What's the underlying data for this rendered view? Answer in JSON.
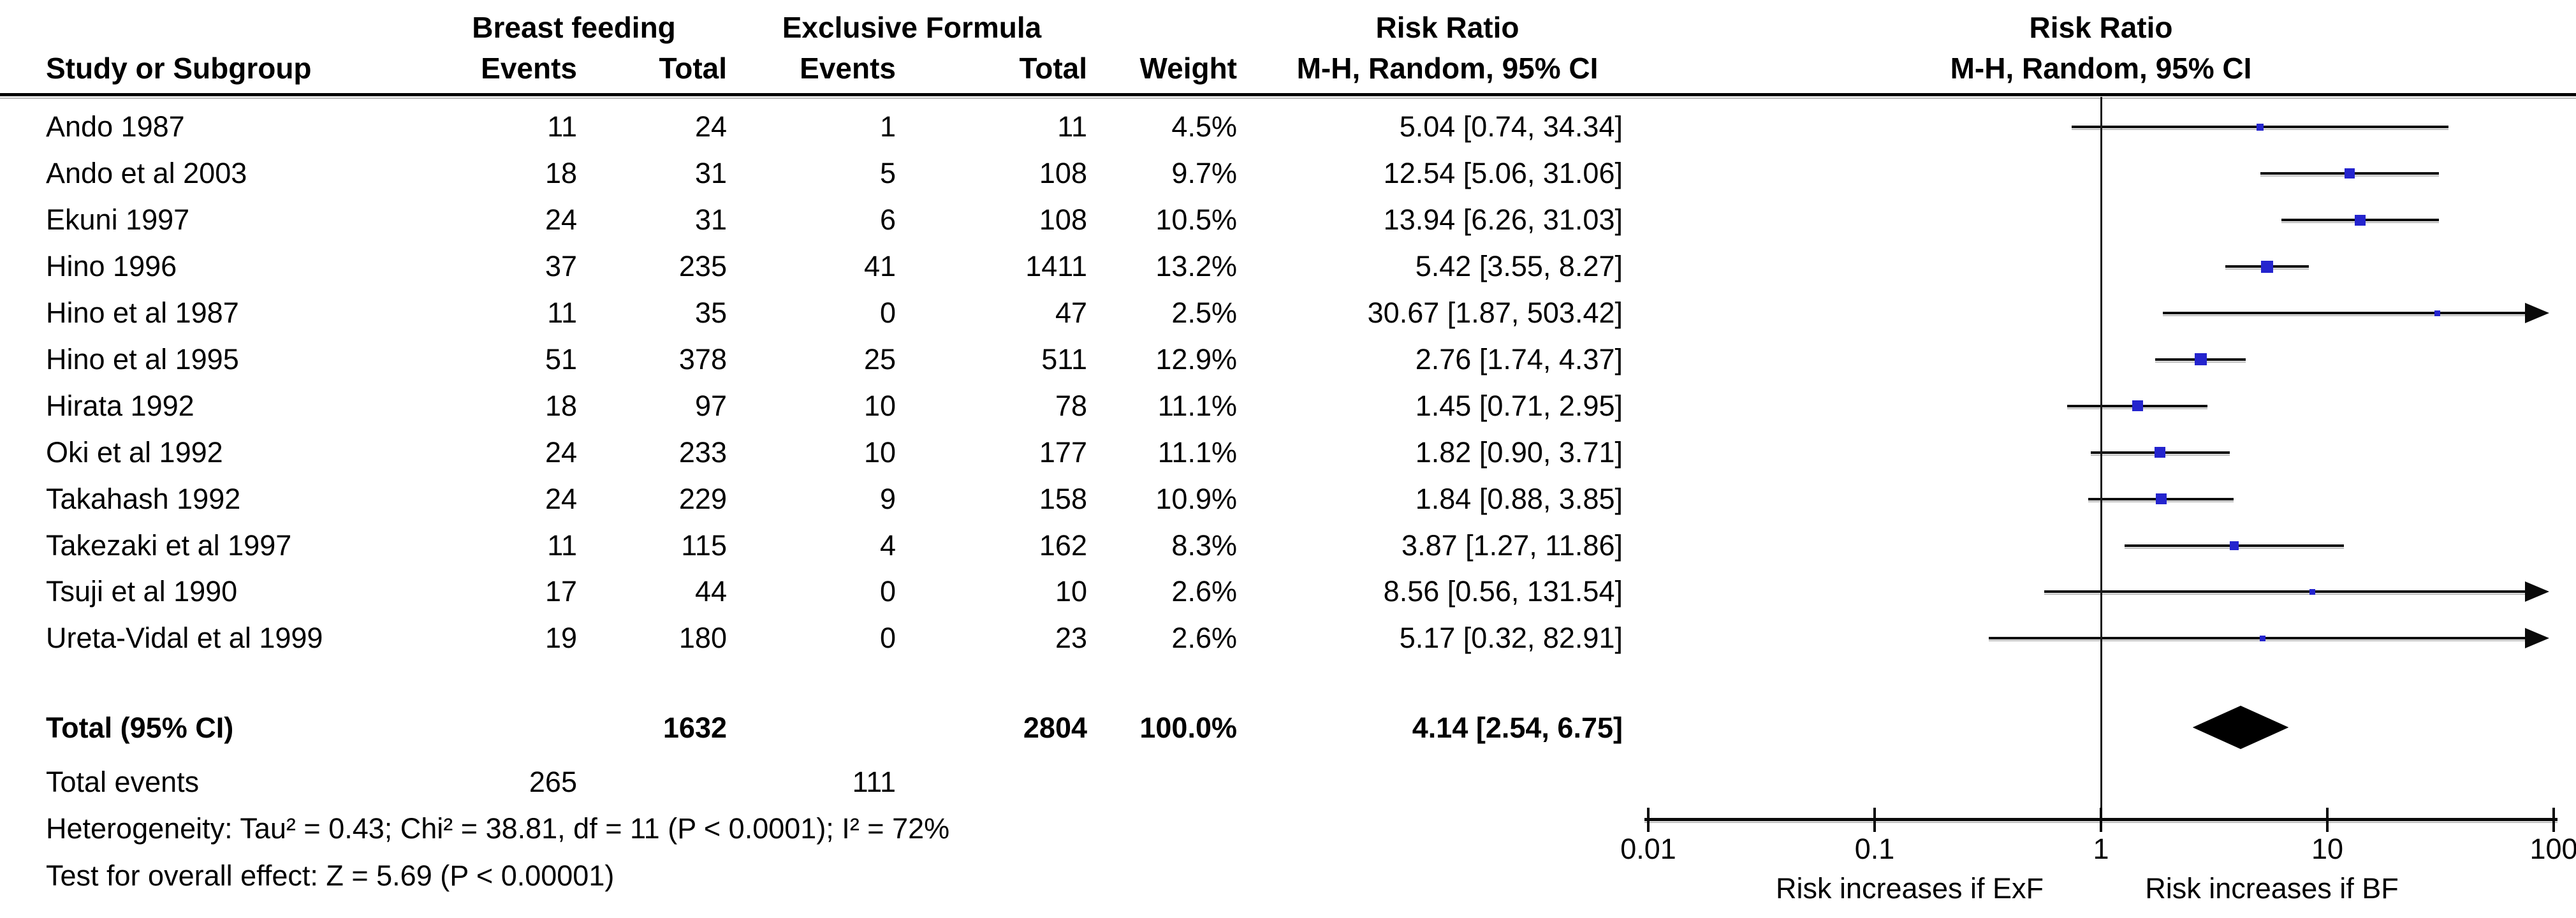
{
  "header": {
    "col_study": "Study or Subgroup",
    "group1": "Breast feeding",
    "group2": "Exclusive Formula",
    "col_events": "Events",
    "col_total": "Total",
    "col_weight": "Weight",
    "risk_ratio_title": "Risk Ratio",
    "method_subtitle": "M-H, Random, 95% CI"
  },
  "chart_data": {
    "type": "forest",
    "effect_measure": "Risk Ratio",
    "model": "M-H, Random, 95% CI",
    "studies": [
      {
        "study": "Ando 1987",
        "bf_events": 11,
        "bf_total": 24,
        "exf_events": 1,
        "exf_total": 11,
        "weight": "4.5%",
        "weight_pct": 4.5,
        "rr_text": "5.04 [0.74, 34.34]",
        "rr": 5.04,
        "ci_low": 0.74,
        "ci_high": 34.34
      },
      {
        "study": "Ando et al 2003",
        "bf_events": 18,
        "bf_total": 31,
        "exf_events": 5,
        "exf_total": 108,
        "weight": "9.7%",
        "weight_pct": 9.7,
        "rr_text": "12.54 [5.06, 31.06]",
        "rr": 12.54,
        "ci_low": 5.06,
        "ci_high": 31.06
      },
      {
        "study": "Ekuni 1997",
        "bf_events": 24,
        "bf_total": 31,
        "exf_events": 6,
        "exf_total": 108,
        "weight": "10.5%",
        "weight_pct": 10.5,
        "rr_text": "13.94 [6.26, 31.03]",
        "rr": 13.94,
        "ci_low": 6.26,
        "ci_high": 31.03
      },
      {
        "study": "Hino 1996",
        "bf_events": 37,
        "bf_total": 235,
        "exf_events": 41,
        "exf_total": 1411,
        "weight": "13.2%",
        "weight_pct": 13.2,
        "rr_text": "5.42 [3.55, 8.27]",
        "rr": 5.42,
        "ci_low": 3.55,
        "ci_high": 8.27
      },
      {
        "study": "Hino et al 1987",
        "bf_events": 11,
        "bf_total": 35,
        "exf_events": 0,
        "exf_total": 47,
        "weight": "2.5%",
        "weight_pct": 2.5,
        "rr_text": "30.67 [1.87, 503.42]",
        "rr": 30.67,
        "ci_low": 1.87,
        "ci_high": 503.42
      },
      {
        "study": "Hino et al 1995",
        "bf_events": 51,
        "bf_total": 378,
        "exf_events": 25,
        "exf_total": 511,
        "weight": "12.9%",
        "weight_pct": 12.9,
        "rr_text": "2.76 [1.74, 4.37]",
        "rr": 2.76,
        "ci_low": 1.74,
        "ci_high": 4.37
      },
      {
        "study": "Hirata 1992",
        "bf_events": 18,
        "bf_total": 97,
        "exf_events": 10,
        "exf_total": 78,
        "weight": "11.1%",
        "weight_pct": 11.1,
        "rr_text": "1.45 [0.71, 2.95]",
        "rr": 1.45,
        "ci_low": 0.71,
        "ci_high": 2.95
      },
      {
        "study": "Oki et al 1992",
        "bf_events": 24,
        "bf_total": 233,
        "exf_events": 10,
        "exf_total": 177,
        "weight": "11.1%",
        "weight_pct": 11.1,
        "rr_text": "1.82 [0.90, 3.71]",
        "rr": 1.82,
        "ci_low": 0.9,
        "ci_high": 3.71
      },
      {
        "study": "Takahash 1992",
        "bf_events": 24,
        "bf_total": 229,
        "exf_events": 9,
        "exf_total": 158,
        "weight": "10.9%",
        "weight_pct": 10.9,
        "rr_text": "1.84 [0.88, 3.85]",
        "rr": 1.84,
        "ci_low": 0.88,
        "ci_high": 3.85
      },
      {
        "study": "Takezaki et al 1997",
        "bf_events": 11,
        "bf_total": 115,
        "exf_events": 4,
        "exf_total": 162,
        "weight": "8.3%",
        "weight_pct": 8.3,
        "rr_text": "3.87 [1.27, 11.86]",
        "rr": 3.87,
        "ci_low": 1.27,
        "ci_high": 11.86
      },
      {
        "study": "Tsuji et al 1990",
        "bf_events": 17,
        "bf_total": 44,
        "exf_events": 0,
        "exf_total": 10,
        "weight": "2.6%",
        "weight_pct": 2.6,
        "rr_text": "8.56 [0.56, 131.54]",
        "rr": 8.56,
        "ci_low": 0.56,
        "ci_high": 131.54
      },
      {
        "study": "Ureta-Vidal et al 1999",
        "bf_events": 19,
        "bf_total": 180,
        "exf_events": 0,
        "exf_total": 23,
        "weight": "2.6%",
        "weight_pct": 2.6,
        "rr_text": "5.17 [0.32, 82.91]",
        "rr": 5.17,
        "ci_low": 0.32,
        "ci_high": 82.91
      }
    ],
    "total": {
      "label": "Total (95% CI)",
      "bf_total": 1632,
      "exf_total": 2804,
      "weight": "100.0%",
      "rr_text": "4.14 [2.54, 6.75]",
      "rr": 4.14,
      "ci_low": 2.54,
      "ci_high": 6.75
    },
    "total_events": {
      "label": "Total events",
      "bf": 265,
      "exf": 111
    },
    "heterogeneity": "Heterogeneity: Tau² = 0.43; Chi² = 38.81, df = 11 (P < 0.0001); I² = 72%",
    "overall_effect": "Test for overall effect: Z = 5.69 (P < 0.00001)",
    "axis": {
      "scale": "log",
      "min": 0.01,
      "max": 100,
      "ticks": [
        0.01,
        0.1,
        1,
        10,
        100
      ],
      "tick_labels": [
        "0.01",
        "0.1",
        "1",
        "10",
        "100"
      ],
      "caption_left": "Risk increases if ExF",
      "caption_right": "Risk increases if BF"
    },
    "colors": {
      "square": "#2424CE",
      "ci_line": "#0a0a0a",
      "diamond": "#000000",
      "axis": "#0a0a0a"
    }
  }
}
